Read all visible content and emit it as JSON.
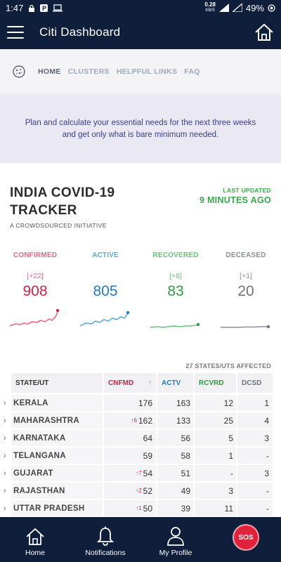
{
  "status_bar": {
    "time": "1:47",
    "speed_value": "0.28",
    "speed_unit": "KB/S",
    "battery": "49%"
  },
  "app_bar": {
    "title": "Citi Dashboard"
  },
  "nav": {
    "tabs": [
      "HOME",
      "CLUSTERS",
      "HELPFUL LINKS",
      "FAQ"
    ]
  },
  "banner": {
    "text": "Plan and calculate your essential needs for the next three weeks and get only what is bare minimum needed."
  },
  "tracker": {
    "title": "INDIA COVID-19 TRACKER",
    "subtitle": "A CROWDSOURCED INITIATIVE",
    "last_updated_label": "LAST UPDATED",
    "last_updated_value": "9 MINUTES AGO"
  },
  "stats": {
    "confirmed": {
      "label": "CONFIRMED",
      "delta": "[+22]",
      "value": "908",
      "color": "#d6214a"
    },
    "active": {
      "label": "ACTIVE",
      "delta": "",
      "value": "805",
      "color": "#1f7ad1"
    },
    "recovered": {
      "label": "RECOVERED",
      "delta": "[+8]",
      "value": "83",
      "color": "#2e9b44"
    },
    "deceased": {
      "label": "DECEASED",
      "delta": "[+1]",
      "value": "20",
      "color": "#6c757d"
    }
  },
  "table": {
    "affected_text": "27 STATES/UTS AFFECTED",
    "headers": {
      "state": "STATE/UT",
      "confirmed": "CNFMD",
      "active": "ACTV",
      "recovered": "RCVRD",
      "deceased": "DCSD"
    },
    "rows": [
      {
        "state": "KERALA",
        "inc": "",
        "confirmed": "176",
        "active": "163",
        "recovered": "12",
        "deceased": "1"
      },
      {
        "state": "MAHARASHTRA",
        "inc": "6",
        "confirmed": "162",
        "active": "133",
        "recovered": "25",
        "deceased": "4"
      },
      {
        "state": "KARNATAKA",
        "inc": "",
        "confirmed": "64",
        "active": "56",
        "recovered": "5",
        "deceased": "3"
      },
      {
        "state": "TELANGANA",
        "inc": "",
        "confirmed": "59",
        "active": "58",
        "recovered": "1",
        "deceased": "-"
      },
      {
        "state": "GUJARAT",
        "inc": "7",
        "confirmed": "54",
        "active": "51",
        "recovered": "-",
        "deceased": "3"
      },
      {
        "state": "RAJASTHAN",
        "inc": "2",
        "confirmed": "52",
        "active": "49",
        "recovered": "3",
        "deceased": "-"
      },
      {
        "state": "UTTAR PRADESH",
        "inc": "1",
        "confirmed": "50",
        "active": "39",
        "recovered": "11",
        "deceased": "-"
      }
    ]
  },
  "bottom_nav": {
    "home": "Home",
    "notifications": "Notifications",
    "profile": "My Profile",
    "sos": "SOS"
  }
}
